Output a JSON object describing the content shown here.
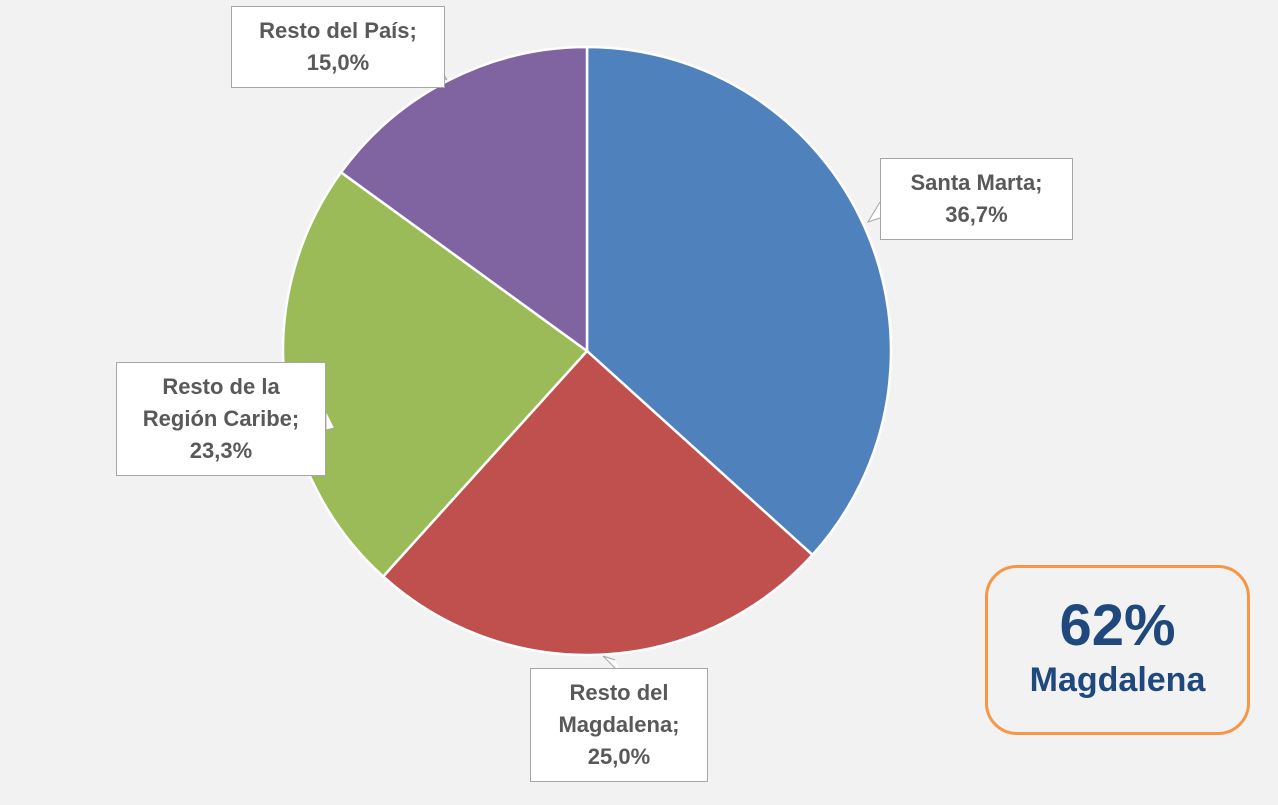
{
  "chart_data": {
    "type": "pie",
    "categories": [
      "Santa Marta;",
      "Resto del Magdalena;",
      "Resto de la Región Caribe;",
      "Resto del País;"
    ],
    "values": [
      36.7,
      25.0,
      23.3,
      15.0
    ],
    "value_labels": [
      "36,7%",
      "25,0%",
      "23,3%",
      "15,0%"
    ],
    "colors": [
      "#4f81bd",
      "#c0504d",
      "#9bbb59",
      "#8064a2"
    ],
    "annotation": {
      "headline": "62%",
      "text": "Magdalena"
    }
  }
}
